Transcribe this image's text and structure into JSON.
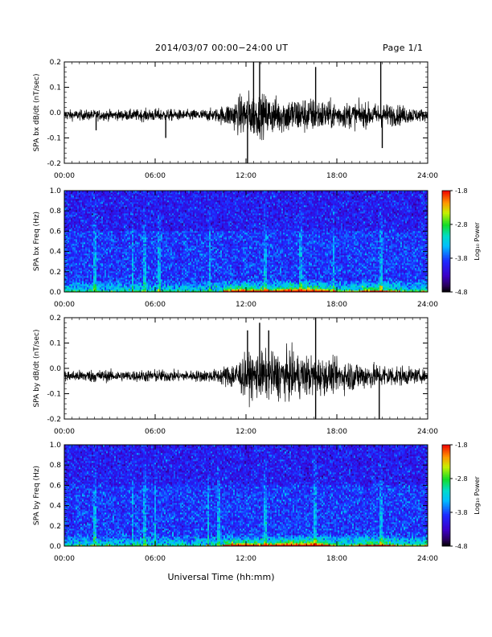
{
  "header": {
    "date_range": "2014/03/07  00:00−24:00 UT",
    "page": "Page 1/1"
  },
  "xlabel": "Universal Time (hh:mm)",
  "colorbar": {
    "label": "Log₁₀ Power",
    "ticks": [
      "-1.8",
      "-2.8",
      "-3.8",
      "-4.8"
    ]
  },
  "chart_data": [
    {
      "type": "line",
      "ylabel": "SPA bx dB/dt (nT/sec)",
      "xlim": [
        0,
        24
      ],
      "ylim": [
        -0.2,
        0.2
      ],
      "x_ticks": [
        "00:00",
        "06:00",
        "12:00",
        "18:00",
        "24:00"
      ],
      "y_ticks": [
        "0.2",
        "0.1",
        "0.0",
        "-0.1",
        "-0.2"
      ],
      "envelope": {
        "hours": [
          0,
          2,
          4,
          6,
          8,
          10,
          11,
          12,
          13,
          14,
          15,
          16,
          17,
          18,
          19,
          20,
          21,
          22,
          23,
          24
        ],
        "amplitude": [
          0.02,
          0.02,
          0.02,
          0.025,
          0.02,
          0.025,
          0.05,
          0.09,
          0.08,
          0.07,
          0.07,
          0.07,
          0.06,
          0.05,
          0.05,
          0.045,
          0.045,
          0.04,
          0.03,
          0.02
        ]
      },
      "spikes": [
        {
          "x": 12.1,
          "y": -0.2
        },
        {
          "x": 12.5,
          "y": 0.2
        },
        {
          "x": 12.9,
          "y": 0.2
        },
        {
          "x": 16.6,
          "y": 0.18
        },
        {
          "x": 20.9,
          "y": 0.2
        },
        {
          "x": 21.0,
          "y": -0.14
        },
        {
          "x": 6.7,
          "y": -0.1
        },
        {
          "x": 2.1,
          "y": -0.07
        }
      ]
    },
    {
      "type": "heatmap",
      "ylabel": "SPA bx Freq (Hz)",
      "xlim": [
        0,
        24
      ],
      "ylim": [
        0.0,
        1.0
      ],
      "clim": [
        -4.8,
        -1.8
      ],
      "x_ticks": [
        "00:00",
        "06:00",
        "12:00",
        "18:00",
        "24:00"
      ],
      "y_ticks": [
        "1.0",
        "0.8",
        "0.6",
        "0.4",
        "0.2",
        "0.0"
      ],
      "streaks_hours": [
        2.0,
        4.5,
        5.3,
        6.3,
        9.6,
        13.3,
        15.6,
        17.8,
        20.9
      ]
    },
    {
      "type": "line",
      "ylabel": "SPA by dB/dt (nT/sec)",
      "xlim": [
        0,
        24
      ],
      "ylim": [
        -0.2,
        0.2
      ],
      "x_ticks": [
        "00:00",
        "06:00",
        "12:00",
        "18:00",
        "24:00"
      ],
      "y_ticks": [
        "0.2",
        "0.1",
        "0.0",
        "-0.1",
        "-0.2"
      ],
      "envelope": {
        "hours": [
          0,
          2,
          4,
          6,
          8,
          10,
          11,
          12,
          13,
          14,
          15,
          16,
          17,
          18,
          19,
          20,
          21,
          22,
          23,
          24
        ],
        "amplitude": [
          0.02,
          0.025,
          0.02,
          0.025,
          0.02,
          0.025,
          0.05,
          0.08,
          0.09,
          0.09,
          0.09,
          0.08,
          0.07,
          0.06,
          0.06,
          0.05,
          0.045,
          0.04,
          0.03,
          0.02
        ]
      },
      "spikes": [
        {
          "x": 12.1,
          "y": 0.15
        },
        {
          "x": 12.9,
          "y": 0.18
        },
        {
          "x": 16.6,
          "y": 0.2
        },
        {
          "x": 16.6,
          "y": -0.2
        },
        {
          "x": 20.8,
          "y": -0.2
        },
        {
          "x": 13.5,
          "y": 0.15
        }
      ]
    },
    {
      "type": "heatmap",
      "ylabel": "SPA by Freq (Hz)",
      "xlim": [
        0,
        24
      ],
      "ylim": [
        0.0,
        1.0
      ],
      "clim": [
        -4.8,
        -1.8
      ],
      "x_ticks": [
        "00:00",
        "06:00",
        "12:00",
        "18:00",
        "24:00"
      ],
      "y_ticks": [
        "1.0",
        "0.8",
        "0.6",
        "0.4",
        "0.2",
        "0.0"
      ],
      "streaks_hours": [
        2.0,
        4.5,
        5.3,
        6.0,
        9.5,
        10.2,
        13.3,
        16.6,
        20.9
      ]
    }
  ]
}
